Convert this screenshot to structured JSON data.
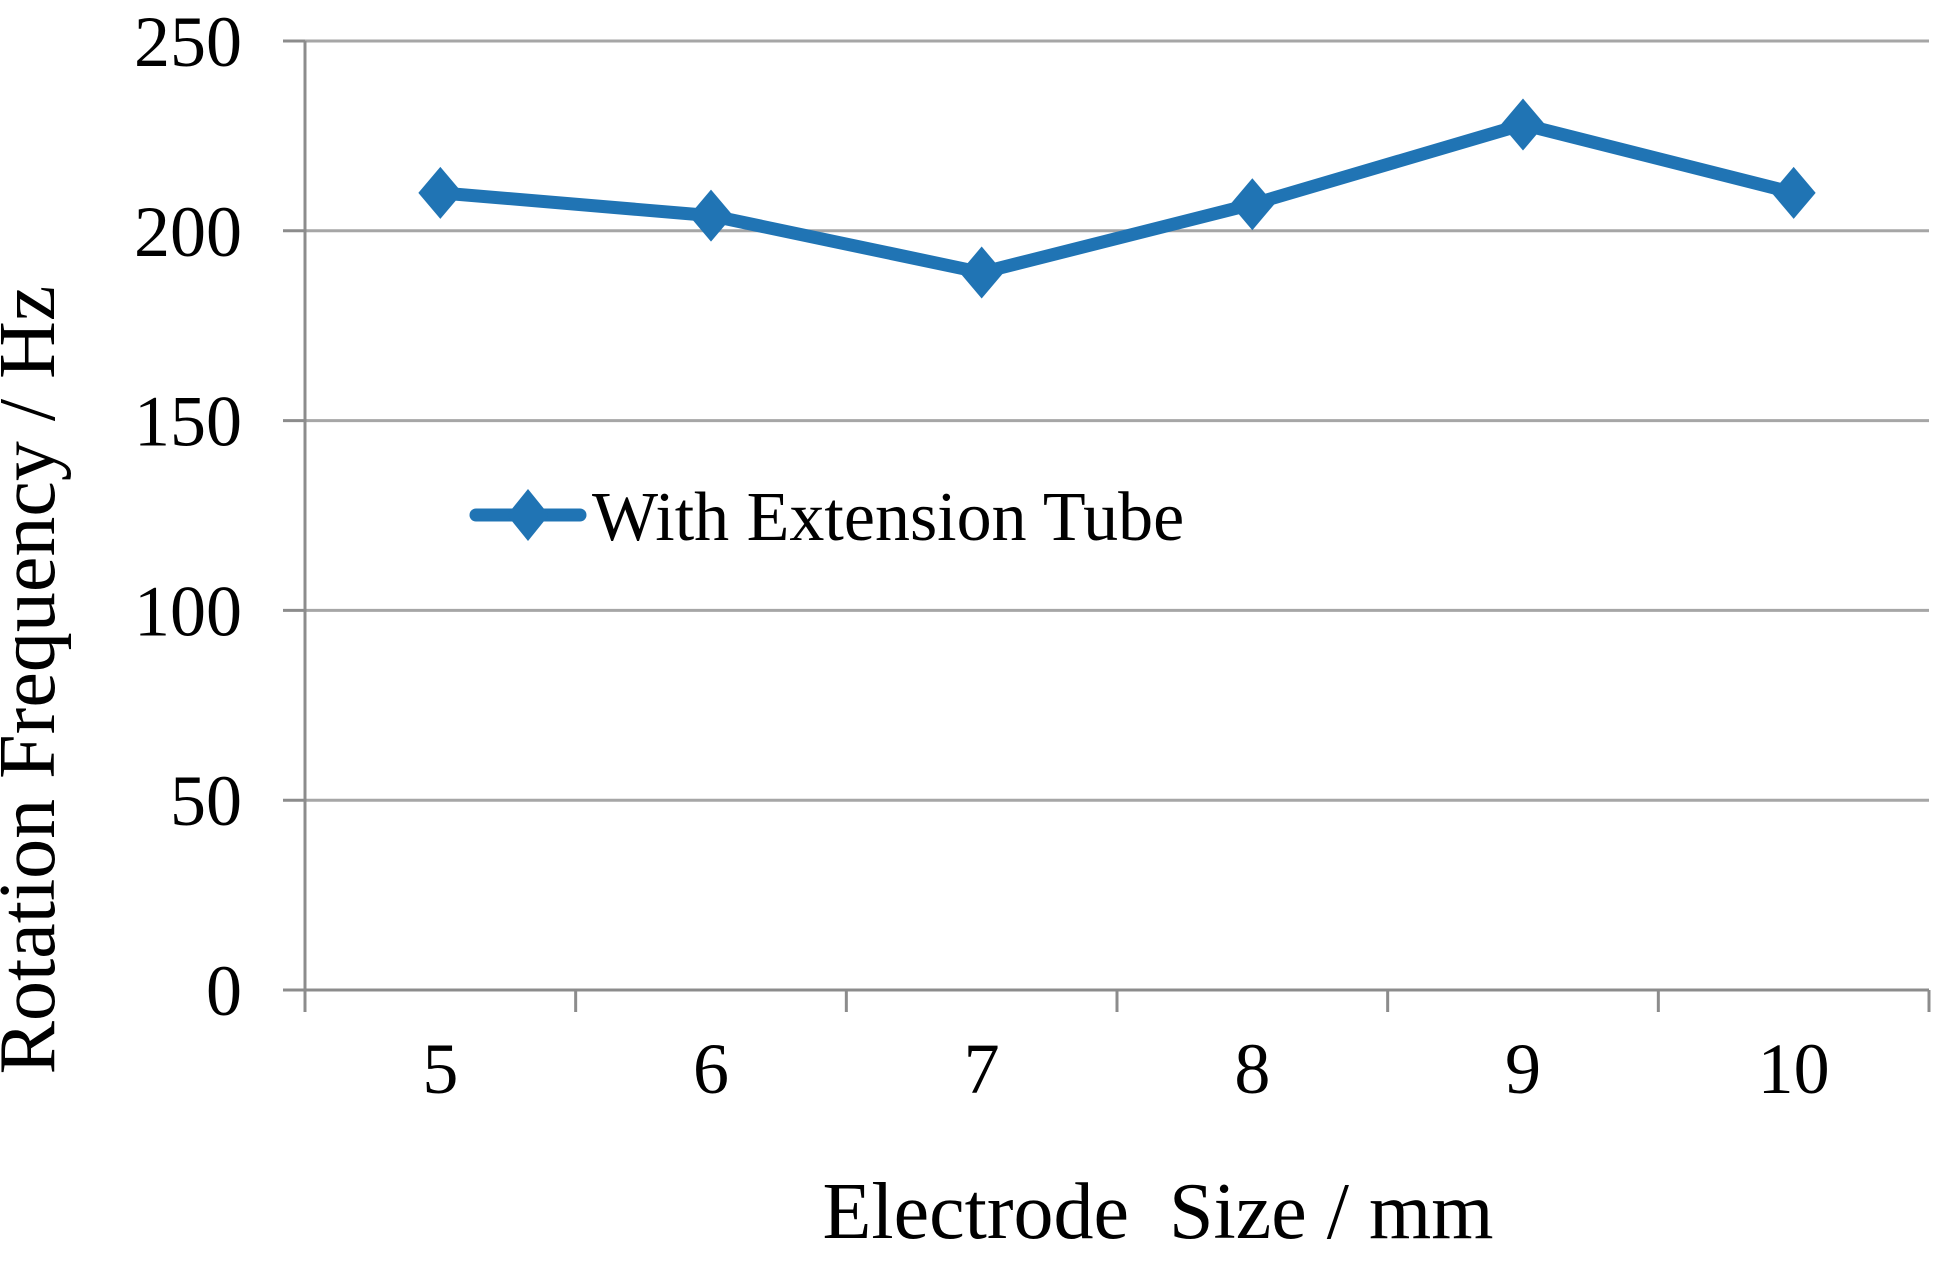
{
  "chart_data": {
    "type": "line",
    "title": "",
    "categories": [
      "5",
      "6",
      "7",
      "8",
      "9",
      "10"
    ],
    "series": [
      {
        "name": "With Extension Tube",
        "values": [
          210,
          204,
          189,
          207,
          228,
          210
        ]
      }
    ],
    "xlabel": "Electrode  Size / mm",
    "ylabel": "Rotation Frequency / Hz",
    "ylim": [
      0,
      250
    ],
    "yticks": [
      0,
      50,
      100,
      150,
      200,
      250
    ],
    "grid": true,
    "marker": "diamond",
    "legend_position": "inside-left-middle",
    "colors": {
      "series": "#2074b4",
      "gridline": "#a6a6a6",
      "axis": "#8c8c8c",
      "text": "#000000",
      "background": "#ffffff"
    }
  }
}
